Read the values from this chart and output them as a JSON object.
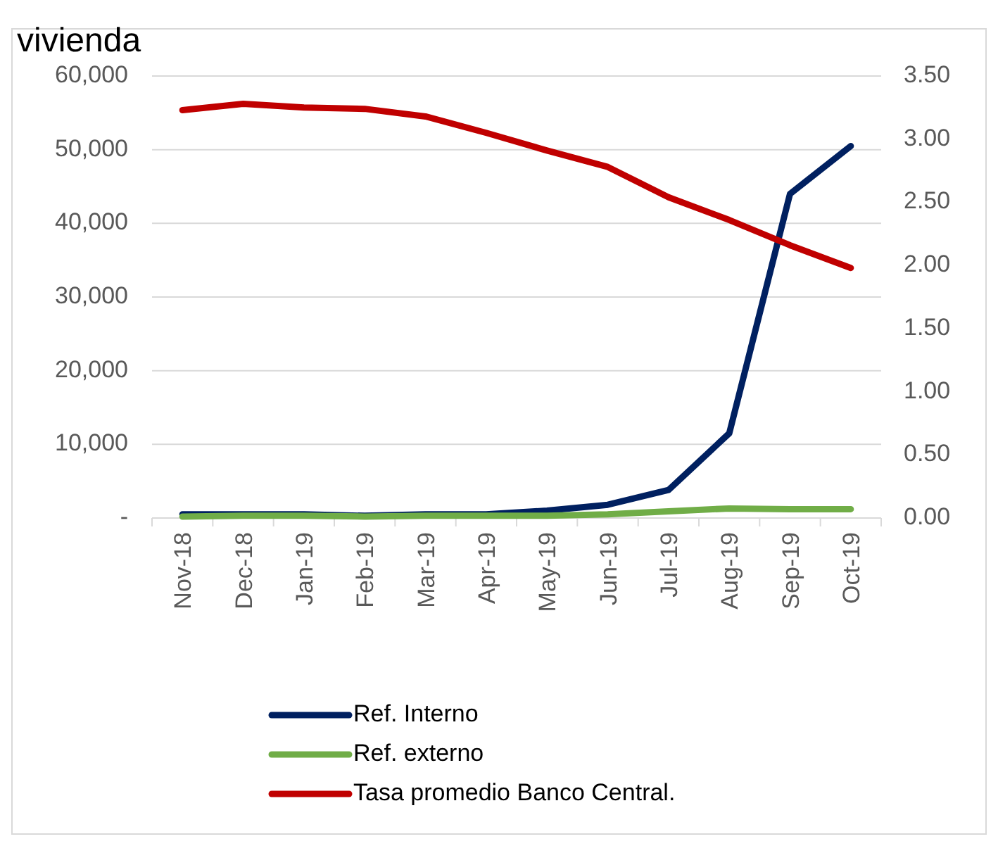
{
  "chart_data": {
    "type": "line",
    "title": "vivienda",
    "categories": [
      "Nov-18",
      "Dec-18",
      "Jan-19",
      "Feb-19",
      "Mar-19",
      "Apr-19",
      "May-19",
      "Jun-19",
      "Jul-19",
      "Aug-19",
      "Sep-19",
      "Oct-19"
    ],
    "series": [
      {
        "name": "Ref. Interno",
        "color": "#002060",
        "values": [
          500,
          500,
          500,
          300,
          500,
          500,
          1000,
          1800,
          3800,
          11500,
          44000,
          50500
        ]
      },
      {
        "name": "Ref. externo",
        "color": "#70ad47",
        "values": [
          200,
          300,
          300,
          200,
          300,
          300,
          300,
          500,
          900,
          1300,
          1200,
          1200
        ]
      },
      {
        "name": "Tasa promedio Banco Central.",
        "color": "#c00000",
        "axis": "y2",
        "values": [
          3.23,
          3.28,
          3.25,
          3.24,
          3.18,
          3.05,
          2.91,
          2.78,
          2.54,
          2.36,
          2.16,
          1.98
        ]
      }
    ],
    "ylim": [
      0,
      60000
    ],
    "yticks": [
      {
        "value": 0,
        "label": "-"
      },
      {
        "value": 10000,
        "label": "10,000"
      },
      {
        "value": 20000,
        "label": "20,000"
      },
      {
        "value": 30000,
        "label": "30,000"
      },
      {
        "value": 40000,
        "label": "40,000"
      },
      {
        "value": 50000,
        "label": "50,000"
      },
      {
        "value": 60000,
        "label": "60,000"
      }
    ],
    "y2lim": [
      0,
      3.5
    ],
    "y2ticks": [
      {
        "value": 0,
        "label": "0.00"
      },
      {
        "value": 0.5,
        "label": "0.50"
      },
      {
        "value": 1,
        "label": "1.00"
      },
      {
        "value": 1.5,
        "label": "1.50"
      },
      {
        "value": 2,
        "label": "2.00"
      },
      {
        "value": 2.5,
        "label": "2.50"
      },
      {
        "value": 3,
        "label": "3.00"
      },
      {
        "value": 3.5,
        "label": "3.50"
      }
    ],
    "grid": "y",
    "legend": "bottom left",
    "marker": "none",
    "line_style": "solid"
  }
}
